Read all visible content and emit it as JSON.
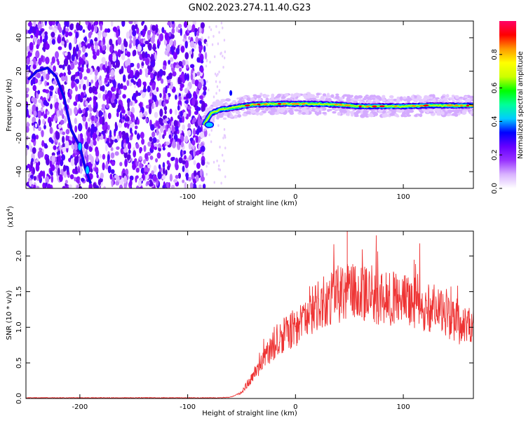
{
  "title": "GN02.2023.274.11.40.G23",
  "chart_data": [
    {
      "type": "heatmap",
      "xlabel": "Height of straight line (km)",
      "ylabel": "Frequency (Hz)",
      "xlim": [
        -250,
        165
      ],
      "ylim": [
        -50,
        50
      ],
      "x_ticks": [
        -200,
        -100,
        0,
        100
      ],
      "y_ticks": [
        -40,
        -20,
        0,
        20,
        40
      ],
      "colorbar": {
        "label": "Normalized spectral amplitude",
        "range": [
          0.0,
          1.0
        ],
        "ticks": [
          0.0,
          0.2,
          0.4,
          0.6,
          0.8
        ],
        "tick_labels": [
          "0.0",
          "0.2",
          "0.4",
          "0.6",
          "0.8"
        ],
        "colormap": [
          "#ffffff",
          "#d9b3ff",
          "#9933ff",
          "#6600ff",
          "#0000ff",
          "#00ccff",
          "#00ff99",
          "#00ff00",
          "#ccff00",
          "#ffff00",
          "#ff9900",
          "#ff0000",
          "#ff0066"
        ]
      },
      "noise_region_x": [
        -250,
        -83
      ],
      "main_track": {
        "x": [
          -85,
          -78,
          -70,
          -60,
          -50,
          -40,
          -20,
          0,
          20,
          40,
          60,
          80,
          100,
          120,
          140,
          165
        ],
        "y": [
          -12,
          -5,
          -3,
          -2,
          -1,
          0,
          0.5,
          0.5,
          0.5,
          0,
          -1,
          -1,
          -1,
          -0.5,
          -0.5,
          -0.5
        ]
      },
      "descending_track": {
        "x": [
          -248,
          -240,
          -230,
          -222,
          -215,
          -208,
          -200,
          -195,
          -190
        ],
        "y": [
          15,
          20,
          22,
          17,
          5,
          -15,
          -25,
          -38,
          -47
        ]
      }
    },
    {
      "type": "line",
      "xlabel": "Height of straight line (km)",
      "ylabel": "SNR (10 * v/v)",
      "y_multiplier": "(x10",
      "y_multiplier_exp": "4",
      "y_multiplier_close": ")",
      "xlim": [
        -250,
        165
      ],
      "ylim": [
        0,
        2.35
      ],
      "x_ticks": [
        -200,
        -100,
        0,
        100
      ],
      "y_ticks": [
        0.0,
        0.5,
        1.0,
        1.5,
        2.0
      ],
      "y_tick_labels": [
        "0.0",
        "0.5",
        "1.0",
        "1.5",
        "2.0"
      ],
      "series": [
        {
          "color": "#ee3333",
          "envelope_x": [
            -250,
            -70,
            -60,
            -50,
            -45,
            -40,
            -35,
            -30,
            -20,
            -10,
            0,
            10,
            20,
            30,
            40,
            50,
            60,
            70,
            80,
            90,
            100,
            110,
            120,
            130,
            140,
            150,
            165
          ],
          "envelope_y": [
            0.01,
            0.01,
            0.02,
            0.08,
            0.2,
            0.3,
            0.42,
            0.55,
            0.75,
            0.9,
            1.0,
            1.15,
            1.3,
            1.4,
            1.45,
            1.5,
            1.47,
            1.45,
            1.42,
            1.4,
            1.38,
            1.35,
            1.3,
            1.25,
            1.15,
            1.05,
            1.0
          ],
          "peak_value": 2.35,
          "peak_x": 48
        }
      ]
    }
  ]
}
